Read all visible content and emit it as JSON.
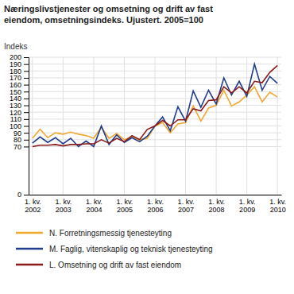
{
  "chart_data": {
    "type": "line",
    "title": [
      "Næringslivstjenester og omsetning og drift av fast",
      "eiendom, omsetningsindeks. Ujustert. 2005=100"
    ],
    "y_label": "Indeks",
    "categories": [
      "1. kv.\n2002",
      null,
      null,
      null,
      "1. kv.\n2003",
      null,
      null,
      null,
      "1. kv.\n2004",
      null,
      null,
      null,
      "1. kv.\n2005",
      null,
      null,
      null,
      "1. kv.\n2006",
      null,
      null,
      null,
      "1. kv.\n2007",
      null,
      null,
      null,
      "1. kv.\n2008",
      null,
      null,
      null,
      "1. kv.\n2009",
      null,
      null,
      null,
      "1. kv.\n2010"
    ],
    "series": [
      {
        "name": "N. Forretningsmessig tjenesteyting",
        "color": "#f0a830",
        "values": [
          82,
          95,
          83,
          90,
          88,
          91,
          88,
          86,
          82,
          98,
          82,
          89,
          80,
          84,
          80,
          82,
          100,
          105,
          90,
          103,
          105,
          129,
          107,
          126,
          130,
          152,
          129,
          135,
          145,
          157,
          135,
          149,
          142
        ]
      },
      {
        "name": "M. Faglig, vitenskaplig og teknisk tjenesteyting",
        "color": "#1f3d8c",
        "values": [
          75,
          84,
          76,
          83,
          74,
          82,
          70,
          78,
          70,
          100,
          73,
          87,
          76,
          83,
          77,
          85,
          100,
          113,
          93,
          128,
          107,
          151,
          127,
          152,
          132,
          170,
          145,
          165,
          143,
          190,
          152,
          172,
          162
        ]
      },
      {
        "name": "L. Omsetning og drift av fast eiendom",
        "color": "#8b1a1a",
        "values": [
          70,
          72,
          72,
          73,
          71,
          73,
          73,
          74,
          74,
          80,
          75,
          82,
          77,
          86,
          80,
          95,
          100,
          108,
          100,
          109,
          109,
          125,
          122,
          137,
          138,
          157,
          148,
          157,
          148,
          165,
          163,
          178,
          188
        ]
      }
    ],
    "ylim": [
      0,
      200
    ],
    "yticks": [
      0,
      70,
      80,
      90,
      100,
      110,
      120,
      130,
      140,
      150,
      160,
      170,
      180,
      190,
      200
    ],
    "grid": true,
    "legend": "bottom"
  }
}
